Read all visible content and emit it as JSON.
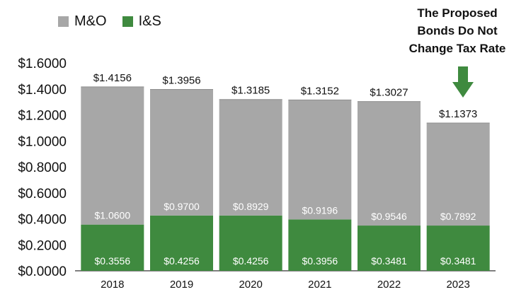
{
  "legend": {
    "items": [
      {
        "label": "M&O",
        "color": "#a7a7a7"
      },
      {
        "label": "I&S",
        "color": "#3f8a3f"
      }
    ]
  },
  "callout": {
    "lines": [
      "The Proposed",
      "Bonds Do Not",
      "Change Tax Rate"
    ],
    "arrow_color": "#3f8a3f",
    "icon": "down-arrow-icon"
  },
  "chart_data": {
    "type": "bar",
    "stacked": true,
    "categories": [
      "2018",
      "2019",
      "2020",
      "2021",
      "2022",
      "2023"
    ],
    "series": [
      {
        "name": "I&S",
        "values": [
          0.3556,
          0.4256,
          0.4256,
          0.3956,
          0.3481,
          0.3481
        ],
        "labels": [
          "$0.3556",
          "$0.4256",
          "$0.4256",
          "$0.3956",
          "$0.3481",
          "$0.3481"
        ],
        "color": "#3f8a3f"
      },
      {
        "name": "M&O",
        "values": [
          1.06,
          0.97,
          0.8929,
          0.9196,
          0.9546,
          0.7892
        ],
        "labels": [
          "$1.0600",
          "$0.9700",
          "$0.8929",
          "$0.9196",
          "$0.9546",
          "$0.7892"
        ],
        "color": "#a7a7a7"
      }
    ],
    "totals": [
      "$1.4156",
      "$1.3956",
      "$1.3185",
      "$1.3152",
      "$1.3027",
      "$1.1373"
    ],
    "ylim": [
      0,
      1.6
    ],
    "yticks": [
      0,
      0.2,
      0.4,
      0.6,
      0.8,
      1.0,
      1.2,
      1.4,
      1.6
    ],
    "ytick_labels": [
      "$0.0000",
      "$0.2000",
      "$0.4000",
      "$0.6000",
      "$0.8000",
      "$1.0000",
      "$1.2000",
      "$1.4000",
      "$1.6000"
    ],
    "title": "",
    "xlabel": "",
    "ylabel": "",
    "grid": false,
    "legend_position": "top-left"
  }
}
